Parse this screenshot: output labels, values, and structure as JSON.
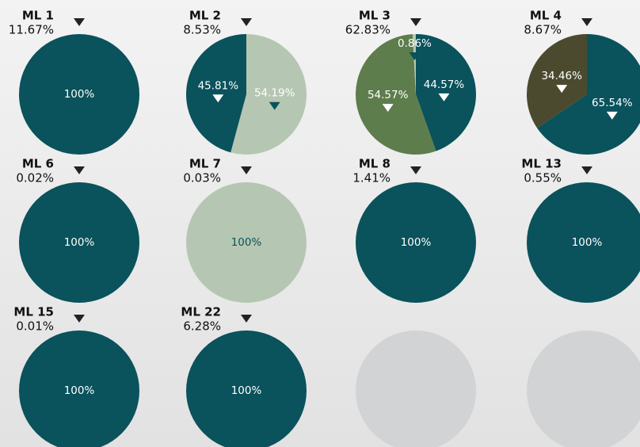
{
  "chart_data": [
    {
      "type": "pie",
      "title": "ML 1",
      "subtitle": "11.67%",
      "values": [
        100
      ],
      "value_labels": [
        "100%"
      ],
      "colors": [
        "#0a525c"
      ]
    },
    {
      "type": "pie",
      "title": "ML 2",
      "subtitle": "8.53%",
      "values": [
        54.19,
        45.81
      ],
      "value_labels": [
        "54.19%",
        "45.81%"
      ],
      "colors": [
        "#b5c7b2",
        "#0a525c"
      ]
    },
    {
      "type": "pie",
      "title": "ML 3",
      "subtitle": "62.83%",
      "values": [
        44.57,
        54.57,
        0.86
      ],
      "value_labels": [
        "44.57%",
        "54.57%",
        "0.86%"
      ],
      "colors": [
        "#0a525c",
        "#5e7d4c",
        "#b5c7b2"
      ]
    },
    {
      "type": "pie",
      "title": "ML 4",
      "subtitle": "8.67%",
      "values": [
        65.54,
        34.46
      ],
      "value_labels": [
        "65.54%",
        "34.46%"
      ],
      "colors": [
        "#0a525c",
        "#4b4a2e"
      ]
    },
    {
      "type": "pie",
      "title": "ML 6",
      "subtitle": "0.02%",
      "values": [
        100
      ],
      "value_labels": [
        "100%"
      ],
      "colors": [
        "#0a525c"
      ]
    },
    {
      "type": "pie",
      "title": "ML 7",
      "subtitle": "0.03%",
      "values": [
        100
      ],
      "value_labels": [
        "100%"
      ],
      "colors": [
        "#b5c7b2"
      ]
    },
    {
      "type": "pie",
      "title": "ML 8",
      "subtitle": "1.41%",
      "values": [
        100
      ],
      "value_labels": [
        "100%"
      ],
      "colors": [
        "#0a525c"
      ]
    },
    {
      "type": "pie",
      "title": "ML 13",
      "subtitle": "0.55%",
      "values": [
        100
      ],
      "value_labels": [
        "100%"
      ],
      "colors": [
        "#0a525c"
      ]
    },
    {
      "type": "pie",
      "title": "ML 15",
      "subtitle": "0.01%",
      "values": [
        100
      ],
      "value_labels": [
        "100%"
      ],
      "colors": [
        "#0a525c"
      ]
    },
    {
      "type": "pie",
      "title": "ML 22",
      "subtitle": "6.28%",
      "values": [
        100
      ],
      "value_labels": [
        "100%"
      ],
      "colors": [
        "#0a525c"
      ]
    }
  ]
}
